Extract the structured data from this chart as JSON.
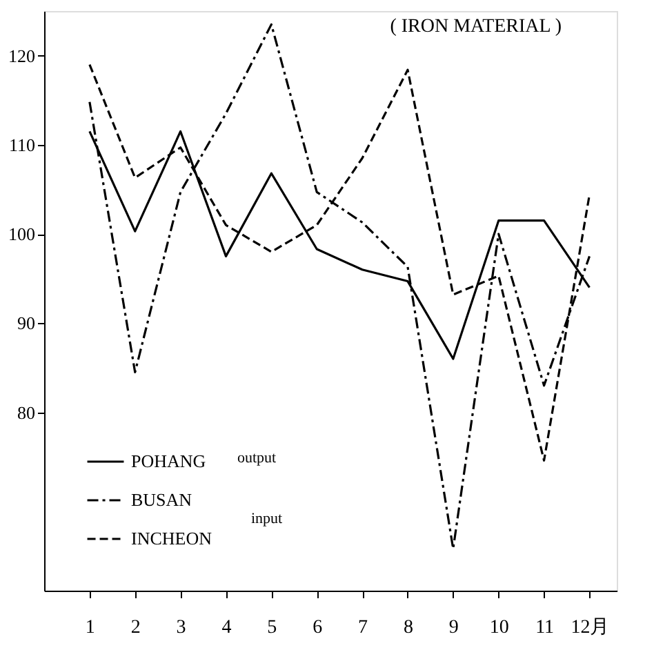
{
  "chart_data": {
    "type": "line",
    "title": "( IRON MATERIAL )",
    "x": [
      1,
      2,
      3,
      4,
      5,
      6,
      7,
      8,
      9,
      10,
      11,
      12
    ],
    "series": [
      {
        "name": "POHANG",
        "color": "#000000",
        "line_style": "solid",
        "values": [
          111.5,
          100.3,
          111.5,
          97.5,
          106.8,
          98.3,
          96,
          94.7,
          86,
          101.5,
          101.5,
          94
        ]
      },
      {
        "name": "BUSAN",
        "color": "#000000",
        "line_style": "dashdot",
        "values": [
          114.8,
          84.5,
          104.7,
          113.5,
          123.5,
          104.7,
          101.3,
          96.3,
          64.7,
          100,
          83,
          97.5
        ]
      },
      {
        "name": "INCHEON",
        "color": "#000000",
        "line_style": "dashed",
        "values": [
          119,
          106.3,
          109.7,
          101,
          98,
          101,
          108.5,
          118.4,
          93.2,
          95.3,
          74.6,
          104.4
        ]
      }
    ],
    "xlim": [
      0,
      12.6
    ],
    "xticks": [
      1,
      2,
      3,
      4,
      5,
      6,
      7,
      8,
      9,
      10,
      11,
      {
        "value": 12,
        "label": "12月"
      }
    ],
    "ylim": [
      60,
      125
    ],
    "yticks": [
      80,
      90,
      100,
      110,
      120
    ],
    "annotations": [
      "output",
      "input"
    ],
    "legend": "bottom left",
    "grid": false,
    "marker": "none"
  }
}
